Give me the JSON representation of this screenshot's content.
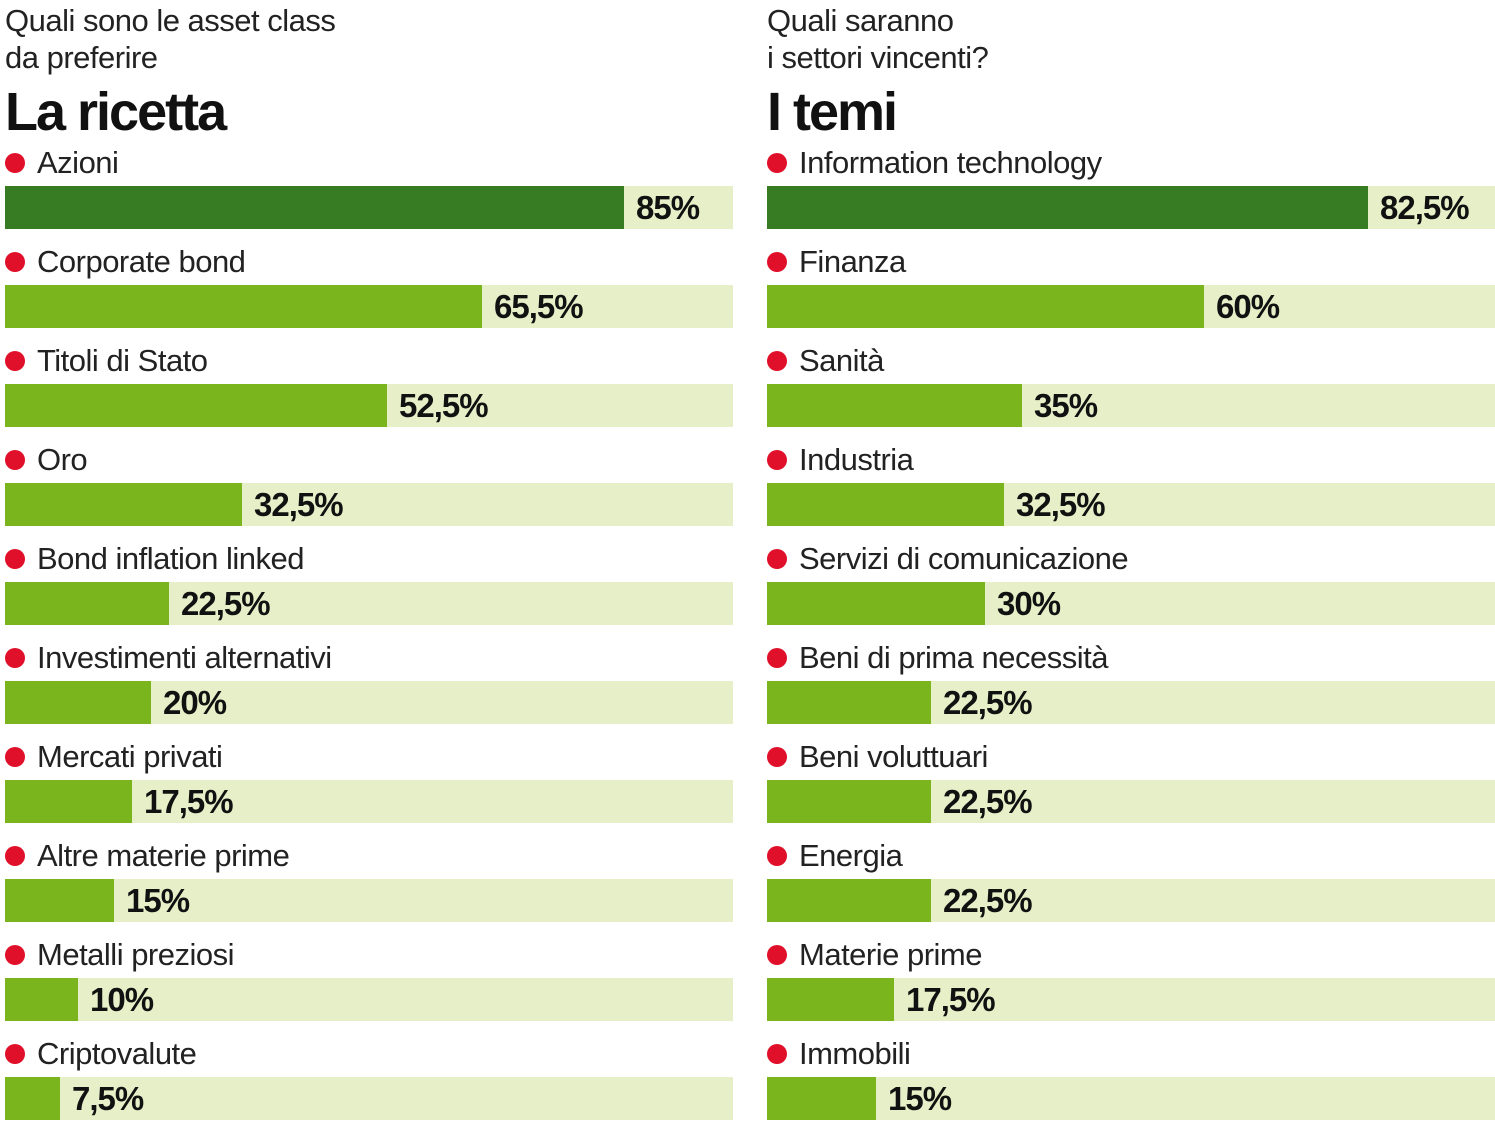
{
  "colors": {
    "bullet": "#e0102a",
    "bar_top": "#377c22",
    "bar": "#7ab51d",
    "track": "#e6efc7"
  },
  "chart_data": [
    {
      "type": "bar",
      "orientation": "horizontal",
      "subtitle": "Quali sono le asset class\nda preferire",
      "title": "La ricetta",
      "categories": [
        "Azioni",
        "Corporate bond",
        "Titoli di Stato",
        "Oro",
        "Bond inflation linked",
        "Investimenti alternativi",
        "Mercati privati",
        "Altre materie prime",
        "Metalli preziosi",
        "Criptovalute"
      ],
      "values": [
        85,
        65.5,
        52.5,
        32.5,
        22.5,
        20,
        17.5,
        15,
        10,
        7.5
      ],
      "value_labels": [
        "85%",
        "65,5%",
        "52,5%",
        "32,5%",
        "22,5%",
        "20%",
        "17,5%",
        "15%",
        "10%",
        "7,5%"
      ],
      "xlim": [
        0,
        100
      ],
      "unit": "%"
    },
    {
      "type": "bar",
      "orientation": "horizontal",
      "subtitle": "Quali saranno\ni settori vincenti?",
      "title": "I temi",
      "categories": [
        "Information technology",
        "Finanza",
        "Sanità",
        "Industria",
        "Servizi di comunicazione",
        "Beni di prima necessità",
        "Beni voluttuari",
        "Energia",
        "Materie prime",
        "Immobili"
      ],
      "values": [
        82.5,
        60,
        35,
        32.5,
        30,
        22.5,
        22.5,
        22.5,
        17.5,
        15
      ],
      "value_labels": [
        "82,5%",
        "60%",
        "35%",
        "32,5%",
        "30%",
        "22,5%",
        "22,5%",
        "22,5%",
        "17,5%",
        "15%"
      ],
      "xlim": [
        0,
        100
      ],
      "unit": "%"
    }
  ]
}
